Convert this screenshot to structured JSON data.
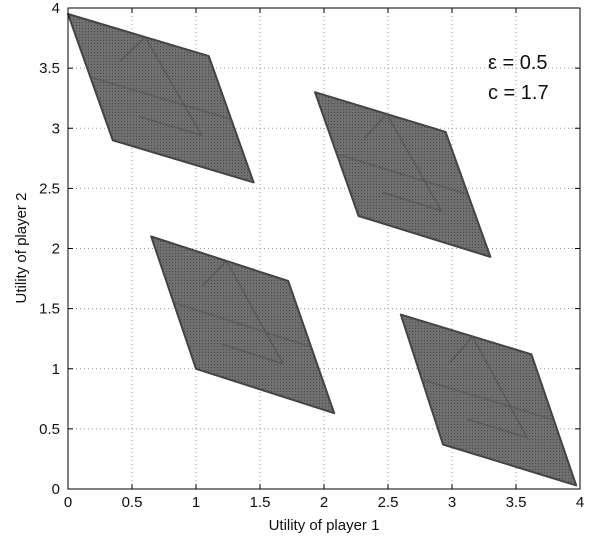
{
  "chart_data": {
    "type": "area",
    "xlabel": "Utility of player 1",
    "ylabel": "Utility of player 2",
    "xlim": [
      0,
      4
    ],
    "ylim": [
      0,
      4
    ],
    "xticks": [
      "0",
      "0.5",
      "1",
      "1.5",
      "2",
      "2.5",
      "3",
      "3.5",
      "4"
    ],
    "yticks": [
      "0",
      "0.5",
      "1",
      "1.5",
      "2",
      "2.5",
      "3",
      "3.5",
      "4"
    ],
    "grid": true,
    "annotations": [
      "ε = 0.5",
      "c = 1.7"
    ],
    "regions": [
      {
        "points": [
          [
            0,
            3.95
          ],
          [
            1.1,
            3.6
          ],
          [
            1.45,
            2.55
          ],
          [
            0.35,
            2.9
          ]
        ]
      },
      {
        "points": [
          [
            1.93,
            3.3
          ],
          [
            2.95,
            2.97
          ],
          [
            3.3,
            1.93
          ],
          [
            2.27,
            2.27
          ]
        ]
      },
      {
        "points": [
          [
            0.65,
            2.1
          ],
          [
            1.72,
            1.73
          ],
          [
            2.08,
            0.63
          ],
          [
            1.0,
            1.0
          ]
        ]
      },
      {
        "points": [
          [
            2.6,
            1.45
          ],
          [
            3.62,
            1.12
          ],
          [
            3.97,
            0.03
          ],
          [
            2.93,
            0.37
          ]
        ]
      }
    ],
    "fill_color": "#6b6b6b",
    "edge_color": "#444444",
    "grid_color": "#9a9a9a"
  }
}
